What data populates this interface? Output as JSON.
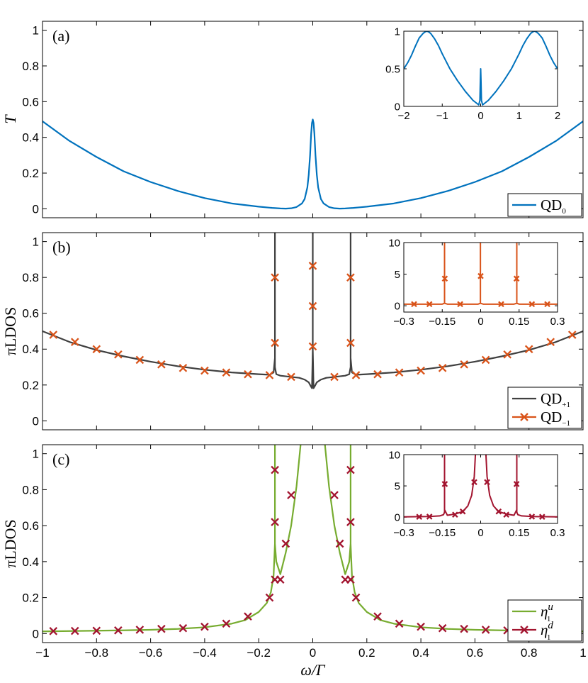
{
  "chart_data": [
    {
      "id": "a",
      "type": "line",
      "panel_label": "(a)",
      "ylabel": "T",
      "xlabel": "",
      "xlim": [
        -1,
        1
      ],
      "ylim": [
        -0.05,
        1.05
      ],
      "yticks": [
        0,
        0.2,
        0.4,
        0.6,
        0.8,
        1
      ],
      "ytick_labels": [
        "0",
        "0.2",
        "0.4",
        "0.6",
        "0.8",
        "1"
      ],
      "legend": {
        "position": "bottom-right",
        "entries": [
          {
            "label": "QD",
            "sub": "0",
            "color": "#0072BD",
            "marker": "none"
          }
        ]
      },
      "series": [
        {
          "name": "QD0",
          "color": "#0072BD",
          "x": [
            -1,
            -0.9,
            -0.8,
            -0.7,
            -0.6,
            -0.5,
            -0.4,
            -0.3,
            -0.2,
            -0.15,
            -0.12,
            -0.1,
            -0.08,
            -0.06,
            -0.04,
            -0.03,
            -0.02,
            -0.015,
            -0.01,
            -0.006,
            -0.003,
            0,
            0.003,
            0.006,
            0.01,
            0.015,
            0.02,
            0.03,
            0.04,
            0.06,
            0.08,
            0.1,
            0.12,
            0.15,
            0.2,
            0.3,
            0.4,
            0.5,
            0.6,
            0.7,
            0.8,
            0.9,
            1
          ],
          "y": [
            0.49,
            0.38,
            0.29,
            0.21,
            0.15,
            0.1,
            0.06,
            0.03,
            0.012,
            0.005,
            0.002,
            0.001,
            0.003,
            0.01,
            0.03,
            0.055,
            0.12,
            0.19,
            0.3,
            0.42,
            0.48,
            0.5,
            0.48,
            0.42,
            0.3,
            0.19,
            0.12,
            0.055,
            0.03,
            0.01,
            0.003,
            0.001,
            0.002,
            0.005,
            0.012,
            0.03,
            0.06,
            0.1,
            0.15,
            0.21,
            0.29,
            0.38,
            0.49
          ]
        }
      ],
      "inset": {
        "xlim": [
          -2,
          2
        ],
        "ylim": [
          0,
          1
        ],
        "xticks": [
          -2,
          -1,
          0,
          1,
          2
        ],
        "xtick_labels": [
          "−2",
          "−1",
          "0",
          "1",
          "2"
        ],
        "yticks": [
          0,
          0.5,
          1
        ],
        "ytick_labels": [
          "0",
          "0.5",
          "1"
        ],
        "series": [
          {
            "name": "QD0 wide",
            "color": "#0072BD",
            "x": [
              -2,
              -1.9,
              -1.8,
              -1.7,
              -1.6,
              -1.5,
              -1.45,
              -1.4,
              -1.35,
              -1.3,
              -1.2,
              -1.1,
              -1,
              -0.9,
              -0.8,
              -0.6,
              -0.4,
              -0.2,
              -0.1,
              -0.05,
              -0.02,
              -0.008,
              0,
              0.008,
              0.02,
              0.05,
              0.1,
              0.2,
              0.4,
              0.6,
              0.8,
              0.9,
              1,
              1.1,
              1.2,
              1.3,
              1.35,
              1.4,
              1.45,
              1.5,
              1.6,
              1.7,
              1.8,
              1.9,
              2
            ],
            "y": [
              0.5,
              0.58,
              0.68,
              0.8,
              0.91,
              0.97,
              0.99,
              1,
              0.99,
              0.97,
              0.9,
              0.81,
              0.7,
              0.6,
              0.5,
              0.34,
              0.2,
              0.08,
              0.04,
              0.02,
              0.08,
              0.35,
              0.5,
              0.35,
              0.08,
              0.02,
              0.04,
              0.08,
              0.2,
              0.34,
              0.5,
              0.6,
              0.7,
              0.81,
              0.9,
              0.97,
              0.99,
              1,
              0.99,
              0.97,
              0.91,
              0.8,
              0.68,
              0.58,
              0.5
            ]
          }
        ]
      }
    },
    {
      "id": "b",
      "type": "line",
      "panel_label": "(b)",
      "ylabel": "πLDOS",
      "xlabel": "",
      "xlim": [
        -1,
        1
      ],
      "ylim": [
        -0.05,
        1.05
      ],
      "yticks": [
        0,
        0.2,
        0.4,
        0.6,
        0.8,
        1
      ],
      "ytick_labels": [
        "0",
        "0.2",
        "0.4",
        "0.6",
        "0.8",
        "1"
      ],
      "legend": {
        "position": "bottom-right",
        "entries": [
          {
            "label": "QD",
            "sub": "+1",
            "color": "#404040",
            "marker": "none"
          },
          {
            "label": "QD",
            "sub": "−1",
            "color": "#D95319",
            "marker": "x"
          }
        ]
      },
      "series": [
        {
          "name": "QD+1",
          "color": "#404040",
          "x": [
            -1,
            -0.9,
            -0.8,
            -0.7,
            -0.6,
            -0.5,
            -0.4,
            -0.3,
            -0.2,
            -0.16,
            -0.145,
            -0.14,
            -0.14,
            -0.14,
            -0.135,
            -0.12,
            -0.08,
            -0.05,
            -0.03,
            -0.015,
            -0.008,
            -0.003,
            0,
            0,
            0,
            0.003,
            0.008,
            0.015,
            0.03,
            0.05,
            0.08,
            0.12,
            0.135,
            0.14,
            0.14,
            0.14,
            0.145,
            0.16,
            0.2,
            0.3,
            0.4,
            0.5,
            0.6,
            0.7,
            0.8,
            0.9,
            1
          ],
          "y": [
            0.5,
            0.44,
            0.395,
            0.36,
            0.33,
            0.305,
            0.285,
            0.27,
            0.26,
            0.257,
            0.27,
            0.35,
            1.2,
            0.3,
            0.26,
            0.252,
            0.245,
            0.24,
            0.23,
            0.215,
            0.195,
            0.182,
            0.4,
            1.2,
            0.4,
            0.182,
            0.195,
            0.215,
            0.23,
            0.24,
            0.245,
            0.252,
            0.26,
            0.3,
            1.2,
            0.35,
            0.27,
            0.257,
            0.26,
            0.27,
            0.285,
            0.305,
            0.33,
            0.36,
            0.395,
            0.44,
            0.5
          ]
        },
        {
          "name": "QD−1",
          "color": "#D95319",
          "marker": "x",
          "line": false,
          "x": [
            -0.96,
            -0.88,
            -0.8,
            -0.72,
            -0.64,
            -0.56,
            -0.48,
            -0.4,
            -0.32,
            -0.24,
            -0.16,
            -0.14,
            -0.14,
            -0.08,
            0,
            0,
            0,
            0.08,
            0.14,
            0.14,
            0.16,
            0.24,
            0.32,
            0.4,
            0.48,
            0.56,
            0.64,
            0.72,
            0.8,
            0.88,
            0.96
          ],
          "y": [
            0.48,
            0.44,
            0.4,
            0.37,
            0.34,
            0.315,
            0.295,
            0.28,
            0.27,
            0.26,
            0.255,
            0.8,
            0.435,
            0.245,
            0.865,
            0.64,
            0.415,
            0.245,
            0.8,
            0.435,
            0.255,
            0.26,
            0.27,
            0.28,
            0.295,
            0.315,
            0.34,
            0.37,
            0.4,
            0.44,
            0.48
          ]
        }
      ],
      "inset": {
        "xlim": [
          -0.3,
          0.3
        ],
        "ylim": [
          -1,
          10
        ],
        "xticks": [
          -0.3,
          -0.15,
          0,
          0.15,
          0.3
        ],
        "xtick_labels": [
          "−0.3",
          "−0.15",
          "0",
          "0.15",
          "0.3"
        ],
        "yticks": [
          0,
          5,
          10
        ],
        "ytick_labels": [
          "0",
          "5",
          "10"
        ],
        "series": [
          {
            "name": "QD inset line",
            "color": "#D95319",
            "x": [
              -0.3,
              -0.15,
              -0.141,
              -0.141,
              -0.141,
              -0.13,
              -0.01,
              -0.001,
              -0.001,
              -0.001,
              0.01,
              0.13,
              0.141,
              0.141,
              0.141,
              0.15,
              0.3
            ],
            "y": [
              0.25,
              0.25,
              0.4,
              12,
              0.4,
              0.25,
              0.25,
              0.4,
              12,
              0.4,
              0.25,
              0.25,
              0.4,
              12,
              0.4,
              0.25,
              0.25
            ]
          },
          {
            "name": "QD inset markers",
            "color": "#D95319",
            "marker": "x",
            "line": false,
            "x": [
              -0.26,
              -0.2,
              -0.14,
              -0.08,
              0,
              0.08,
              0.14,
              0.2,
              0.26
            ],
            "y": [
              0.25,
              0.25,
              4.3,
              0.25,
              4.7,
              0.25,
              4.3,
              0.25,
              0.25
            ]
          }
        ]
      }
    },
    {
      "id": "c",
      "type": "line",
      "panel_label": "(c)",
      "ylabel": "πLDOS",
      "xlabel": "ω/Γ",
      "xlim": [
        -1,
        1
      ],
      "ylim": [
        -0.05,
        1.05
      ],
      "xticks": [
        -1,
        -0.8,
        -0.6,
        -0.4,
        -0.2,
        0,
        0.2,
        0.4,
        0.6,
        0.8,
        1
      ],
      "xtick_labels": [
        "−1",
        "−0.8",
        "−0.6",
        "−0.4",
        "−0.2",
        "0",
        "0.2",
        "0.4",
        "0.6",
        "0.8",
        "1"
      ],
      "yticks": [
        0,
        0.2,
        0.4,
        0.6,
        0.8,
        1
      ],
      "ytick_labels": [
        "0",
        "0.2",
        "0.4",
        "0.6",
        "0.8",
        "1"
      ],
      "legend": {
        "position": "bottom-right",
        "entries": [
          {
            "label": "η",
            "sup": "u",
            "sub": "1",
            "color": "#77AC30",
            "marker": "none"
          },
          {
            "label": "η",
            "sup": "d",
            "sub": "1",
            "color": "#A2142F",
            "marker": "x"
          }
        ]
      },
      "series": [
        {
          "name": "η1u",
          "color": "#77AC30",
          "x": [
            -1,
            -0.9,
            -0.8,
            -0.7,
            -0.6,
            -0.5,
            -0.4,
            -0.3,
            -0.25,
            -0.2,
            -0.17,
            -0.155,
            -0.145,
            -0.14,
            -0.14,
            -0.14,
            -0.135,
            -0.12,
            -0.1,
            -0.08,
            -0.06,
            -0.045,
            -0.03,
            0.03,
            0.045,
            0.06,
            0.08,
            0.1,
            0.12,
            0.135,
            0.14,
            0.14,
            0.14,
            0.145,
            0.155,
            0.17,
            0.2,
            0.25,
            0.3,
            0.4,
            0.5,
            0.6,
            0.7,
            0.8,
            0.9,
            1
          ],
          "y": [
            0.012,
            0.014,
            0.016,
            0.018,
            0.021,
            0.026,
            0.035,
            0.055,
            0.075,
            0.12,
            0.17,
            0.23,
            0.32,
            0.5,
            1.2,
            0.5,
            0.4,
            0.33,
            0.45,
            0.6,
            0.82,
            1.05,
            1.2,
            1.2,
            1.05,
            0.82,
            0.6,
            0.45,
            0.33,
            0.4,
            0.5,
            1.2,
            0.5,
            0.32,
            0.23,
            0.17,
            0.12,
            0.075,
            0.055,
            0.035,
            0.026,
            0.021,
            0.018,
            0.016,
            0.014,
            0.012
          ]
        },
        {
          "name": "η1d",
          "color": "#A2142F",
          "marker": "x",
          "line": false,
          "x": [
            -0.96,
            -0.88,
            -0.8,
            -0.72,
            -0.64,
            -0.56,
            -0.48,
            -0.4,
            -0.32,
            -0.24,
            -0.16,
            -0.14,
            -0.14,
            -0.14,
            -0.12,
            -0.1,
            -0.08,
            0.08,
            0.1,
            0.12,
            0.14,
            0.14,
            0.14,
            0.16,
            0.24,
            0.32,
            0.4,
            0.48,
            0.56,
            0.64,
            0.72,
            0.8,
            0.88,
            0.96
          ],
          "y": [
            0.014,
            0.015,
            0.016,
            0.018,
            0.021,
            0.026,
            0.03,
            0.038,
            0.055,
            0.095,
            0.2,
            0.91,
            0.62,
            0.3,
            0.3,
            0.5,
            0.77,
            0.77,
            0.5,
            0.3,
            0.91,
            0.62,
            0.3,
            0.2,
            0.095,
            0.055,
            0.038,
            0.03,
            0.026,
            0.021,
            0.018,
            0.016,
            0.015,
            0.014
          ]
        }
      ],
      "inset": {
        "xlim": [
          -0.3,
          0.3
        ],
        "ylim": [
          -1,
          10
        ],
        "xticks": [
          -0.3,
          -0.15,
          0,
          0.15,
          0.3
        ],
        "xtick_labels": [
          "−0.3",
          "−0.15",
          "0",
          "0.15",
          "0.3"
        ],
        "yticks": [
          0,
          5,
          10
        ],
        "ytick_labels": [
          "0",
          "5",
          "10"
        ],
        "series": [
          {
            "name": "η1d inset line",
            "color": "#A2142F",
            "x": [
              -0.3,
              -0.2,
              -0.16,
              -0.145,
              -0.141,
              -0.141,
              -0.141,
              -0.13,
              -0.1,
              -0.07,
              -0.05,
              -0.035,
              -0.025,
              -0.018,
              0.018,
              0.025,
              0.035,
              0.05,
              0.07,
              0.1,
              0.13,
              0.141,
              0.141,
              0.141,
              0.145,
              0.16,
              0.2,
              0.3
            ],
            "y": [
              0.05,
              0.1,
              0.2,
              0.4,
              0.8,
              12,
              1.2,
              0.3,
              0.5,
              0.9,
              1.8,
              3.5,
              6.5,
              12,
              12,
              6.5,
              3.5,
              1.8,
              0.9,
              0.5,
              0.3,
              1.2,
              12,
              0.8,
              0.4,
              0.2,
              0.1,
              0.05
            ]
          },
          {
            "name": "η1d inset markers",
            "color": "#A2142F",
            "marker": "x",
            "line": false,
            "x": [
              -0.24,
              -0.2,
              -0.14,
              -0.1,
              -0.07,
              -0.025,
              0.025,
              0.07,
              0.1,
              0.14,
              0.2,
              0.24
            ],
            "y": [
              0.05,
              0.08,
              5.3,
              0.4,
              0.9,
              5.6,
              5.6,
              0.9,
              0.4,
              5.3,
              0.08,
              0.05
            ]
          }
        ]
      }
    }
  ]
}
